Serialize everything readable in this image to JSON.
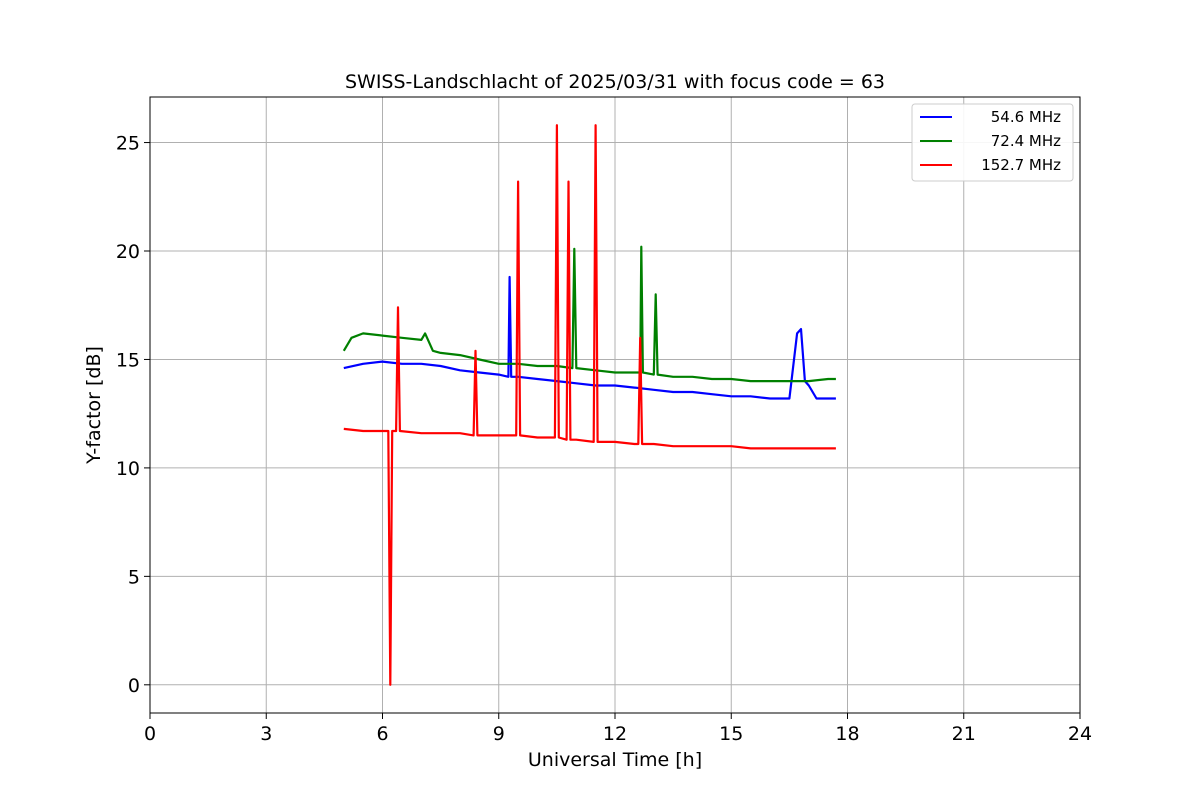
{
  "chart_data": {
    "type": "line",
    "title": "SWISS-Landschlacht of 2025/03/31 with focus code = 63",
    "xlabel": "Universal Time [h]",
    "ylabel": "Y-factor [dB]",
    "xlim": [
      0,
      24
    ],
    "ylim": [
      -1.3,
      27.1
    ],
    "xticks": [
      0,
      3,
      6,
      9,
      12,
      15,
      18,
      21,
      24
    ],
    "yticks": [
      0,
      5,
      10,
      15,
      20,
      25
    ],
    "grid": true,
    "legend_position": "top-right",
    "series": [
      {
        "name": "54.6 MHz",
        "color": "#0000ff",
        "x": [
          5.0,
          5.5,
          6.0,
          6.5,
          7.0,
          7.5,
          8.0,
          8.5,
          9.0,
          9.25,
          9.28,
          9.32,
          9.5,
          10.0,
          10.5,
          11.0,
          11.5,
          12.0,
          12.5,
          13.0,
          13.5,
          14.0,
          14.5,
          15.0,
          15.5,
          16.0,
          16.5,
          16.7,
          16.8,
          16.9,
          17.0,
          17.2,
          17.5,
          17.7
        ],
        "y": [
          14.6,
          14.8,
          14.9,
          14.8,
          14.8,
          14.7,
          14.5,
          14.4,
          14.3,
          14.2,
          18.8,
          14.2,
          14.2,
          14.1,
          14.0,
          13.9,
          13.8,
          13.8,
          13.7,
          13.6,
          13.5,
          13.5,
          13.4,
          13.3,
          13.3,
          13.2,
          13.2,
          16.2,
          16.4,
          14.0,
          13.8,
          13.2,
          13.2,
          13.2
        ]
      },
      {
        "name": "72.4 MHz",
        "color": "#008000",
        "x": [
          5.0,
          5.2,
          5.5,
          6.0,
          6.5,
          7.0,
          7.1,
          7.3,
          7.5,
          8.0,
          8.5,
          9.0,
          9.5,
          10.0,
          10.5,
          10.9,
          10.95,
          11.0,
          11.5,
          12.0,
          12.5,
          12.65,
          12.68,
          12.72,
          13.0,
          13.05,
          13.1,
          13.5,
          14.0,
          14.5,
          15.0,
          15.5,
          16.0,
          16.5,
          17.0,
          17.5,
          17.7
        ],
        "y": [
          15.4,
          16.0,
          16.2,
          16.1,
          16.0,
          15.9,
          16.2,
          15.4,
          15.3,
          15.2,
          15.0,
          14.8,
          14.8,
          14.7,
          14.7,
          14.6,
          20.1,
          14.6,
          14.5,
          14.4,
          14.4,
          14.4,
          20.2,
          14.4,
          14.3,
          18.0,
          14.3,
          14.2,
          14.2,
          14.1,
          14.1,
          14.0,
          14.0,
          14.0,
          14.0,
          14.1,
          14.1
        ]
      },
      {
        "name": "152.7 MHz",
        "color": "#ff0000",
        "x": [
          5.0,
          5.5,
          6.0,
          6.15,
          6.2,
          6.25,
          6.35,
          6.4,
          6.45,
          7.0,
          7.5,
          8.0,
          8.35,
          8.4,
          8.45,
          9.0,
          9.45,
          9.5,
          9.55,
          10.0,
          10.45,
          10.5,
          10.55,
          10.75,
          10.8,
          10.85,
          11.0,
          11.45,
          11.5,
          11.55,
          12.0,
          12.5,
          12.6,
          12.65,
          12.7,
          13.0,
          13.5,
          14.0,
          14.5,
          15.0,
          15.5,
          16.0,
          16.5,
          17.0,
          17.5,
          17.7
        ],
        "y": [
          11.8,
          11.7,
          11.7,
          11.7,
          0.0,
          11.7,
          11.7,
          17.4,
          11.7,
          11.6,
          11.6,
          11.6,
          11.5,
          15.4,
          11.5,
          11.5,
          11.5,
          23.2,
          11.5,
          11.4,
          11.4,
          25.8,
          11.4,
          11.3,
          23.2,
          11.3,
          11.3,
          11.2,
          25.8,
          11.2,
          11.2,
          11.1,
          11.1,
          16.0,
          11.1,
          11.1,
          11.0,
          11.0,
          11.0,
          11.0,
          10.9,
          10.9,
          10.9,
          10.9,
          10.9,
          10.9
        ]
      }
    ]
  }
}
